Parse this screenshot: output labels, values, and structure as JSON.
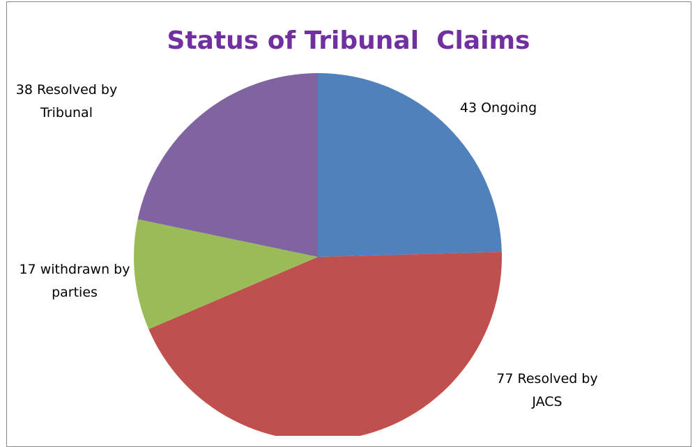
{
  "chart_data": {
    "type": "pie",
    "title": "Status of Tribunal  Claims",
    "values": [
      43,
      77,
      17,
      38
    ],
    "value_labels": [
      "43 Ongoing",
      "77 Resolved by JACS",
      "17 withdrawn by parties",
      "38 Resolved by Tribunal"
    ],
    "colors": [
      "#4f81bd",
      "#c0504d",
      "#9bbb59",
      "#8064a2"
    ]
  }
}
